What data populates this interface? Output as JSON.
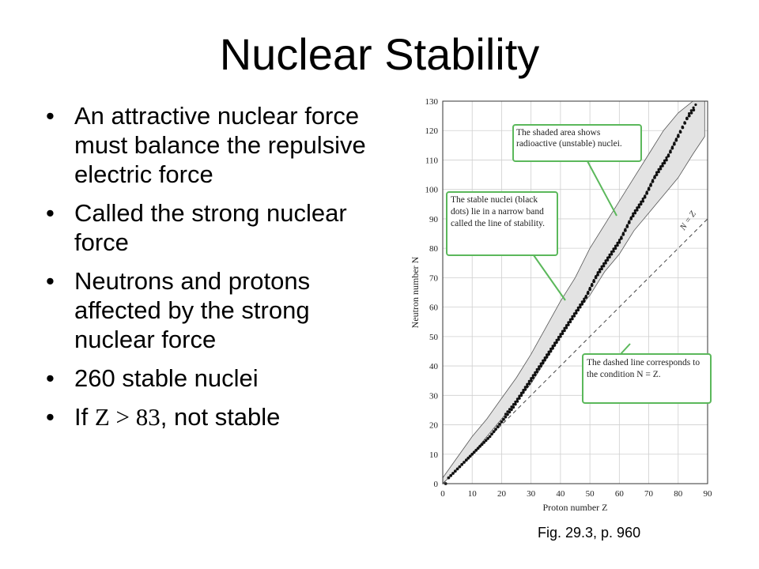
{
  "slide": {
    "title": "Nuclear Stability",
    "bullet_symbol": "•",
    "bullets": [
      "An attractive nuclear force must balance the repulsive electric force",
      "Called the strong nuclear force",
      "Neutrons and protons affected by the strong nuclear force",
      "260 stable nuclei"
    ],
    "last_bullet": {
      "prefix": "If ",
      "expr": "Z > 83",
      "suffix": ", not stable"
    },
    "caption": "Fig. 29.3, p. 960"
  },
  "chart_data": {
    "type": "scatter",
    "xlabel": "Proton number Z",
    "ylabel": "Neutron number N",
    "xlim": [
      0,
      90
    ],
    "ylim": [
      0,
      130
    ],
    "xticks": [
      0,
      10,
      20,
      30,
      40,
      50,
      60,
      70,
      80,
      90
    ],
    "yticks": [
      0,
      10,
      20,
      30,
      40,
      50,
      60,
      70,
      80,
      90,
      100,
      110,
      120,
      130
    ],
    "grid": true,
    "colors": {
      "shade": "#e3e3e3",
      "dots": "#111111",
      "callout_border": "#5bb85b",
      "grid": "#cfcfcf"
    },
    "line_label": "N = Z",
    "shaded_region": {
      "upper": [
        [
          0,
          2
        ],
        [
          5,
          9
        ],
        [
          10,
          16
        ],
        [
          15,
          22
        ],
        [
          20,
          29
        ],
        [
          25,
          36
        ],
        [
          30,
          44
        ],
        [
          35,
          53
        ],
        [
          40,
          62
        ],
        [
          45,
          70
        ],
        [
          50,
          80
        ],
        [
          55,
          88
        ],
        [
          60,
          96
        ],
        [
          65,
          104
        ],
        [
          70,
          112
        ],
        [
          75,
          120
        ],
        [
          80,
          126
        ],
        [
          85,
          130
        ],
        [
          89,
          130
        ]
      ],
      "lower": [
        [
          89,
          118
        ],
        [
          85,
          112
        ],
        [
          80,
          104
        ],
        [
          75,
          98
        ],
        [
          70,
          92
        ],
        [
          65,
          86
        ],
        [
          60,
          78
        ],
        [
          55,
          72
        ],
        [
          50,
          64
        ],
        [
          45,
          58
        ],
        [
          40,
          50
        ],
        [
          35,
          42
        ],
        [
          30,
          34
        ],
        [
          25,
          28
        ],
        [
          20,
          22
        ],
        [
          15,
          16
        ],
        [
          10,
          10
        ],
        [
          5,
          5
        ],
        [
          0,
          0
        ]
      ]
    },
    "stable_line": [
      [
        1,
        0
      ],
      [
        2,
        2
      ],
      [
        5,
        5
      ],
      [
        8,
        8
      ],
      [
        10,
        10
      ],
      [
        14,
        14
      ],
      [
        16,
        16
      ],
      [
        20,
        21
      ],
      [
        24,
        26
      ],
      [
        28,
        32
      ],
      [
        32,
        38
      ],
      [
        36,
        44
      ],
      [
        40,
        50
      ],
      [
        44,
        56
      ],
      [
        48,
        62
      ],
      [
        52,
        70
      ],
      [
        56,
        76
      ],
      [
        60,
        82
      ],
      [
        64,
        90
      ],
      [
        68,
        96
      ],
      [
        72,
        104
      ],
      [
        76,
        110
      ],
      [
        80,
        118
      ],
      [
        83,
        124
      ],
      [
        86,
        128
      ]
    ],
    "annotations": [
      "The shaded area shows radioactive (unstable) nuclei.",
      "The stable nuclei (black dots) lie in a narrow band called the line of stability.",
      "The dashed line corresponds to the condition N = Z."
    ]
  }
}
